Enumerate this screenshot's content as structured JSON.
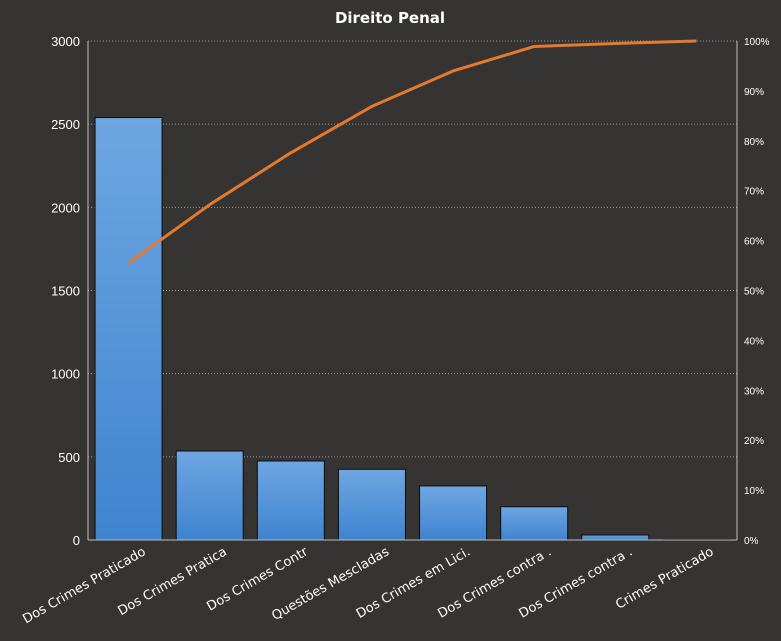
{
  "chart_data": {
    "type": "bar",
    "title": "Direito  Penal",
    "categories": [
      "Dos Crimes Praticado",
      "Dos Crimes Pratica",
      "Dos Crimes Contr",
      "Questões Mescladas",
      "Dos Crimes em Lici.",
      "Dos Crimes contra  .",
      "Dos Crimes contra .",
      "Crimes Praticado"
    ],
    "series": [
      {
        "type": "bar",
        "values": [
          2540,
          535,
          475,
          425,
          325,
          200,
          30,
          3
        ],
        "color": "#4a8fd6"
      },
      {
        "type": "line",
        "axis": "secondary",
        "values": [
          55.5,
          67.2,
          77.6,
          86.9,
          94.0,
          98.9,
          99.5,
          100
        ],
        "color": "#e57a2e"
      }
    ],
    "ylim": [
      0,
      3000
    ],
    "yticks": [
      "0",
      "500",
      "1000",
      "1500",
      "2000",
      "2500",
      "3000"
    ],
    "y2lim": [
      0,
      100
    ],
    "y2ticks": [
      "0%",
      "10%",
      "20%",
      "30%",
      "40%",
      "50%",
      "60%",
      "70%",
      "80%",
      "90%",
      "100%"
    ],
    "grid": true,
    "legend": "none"
  }
}
